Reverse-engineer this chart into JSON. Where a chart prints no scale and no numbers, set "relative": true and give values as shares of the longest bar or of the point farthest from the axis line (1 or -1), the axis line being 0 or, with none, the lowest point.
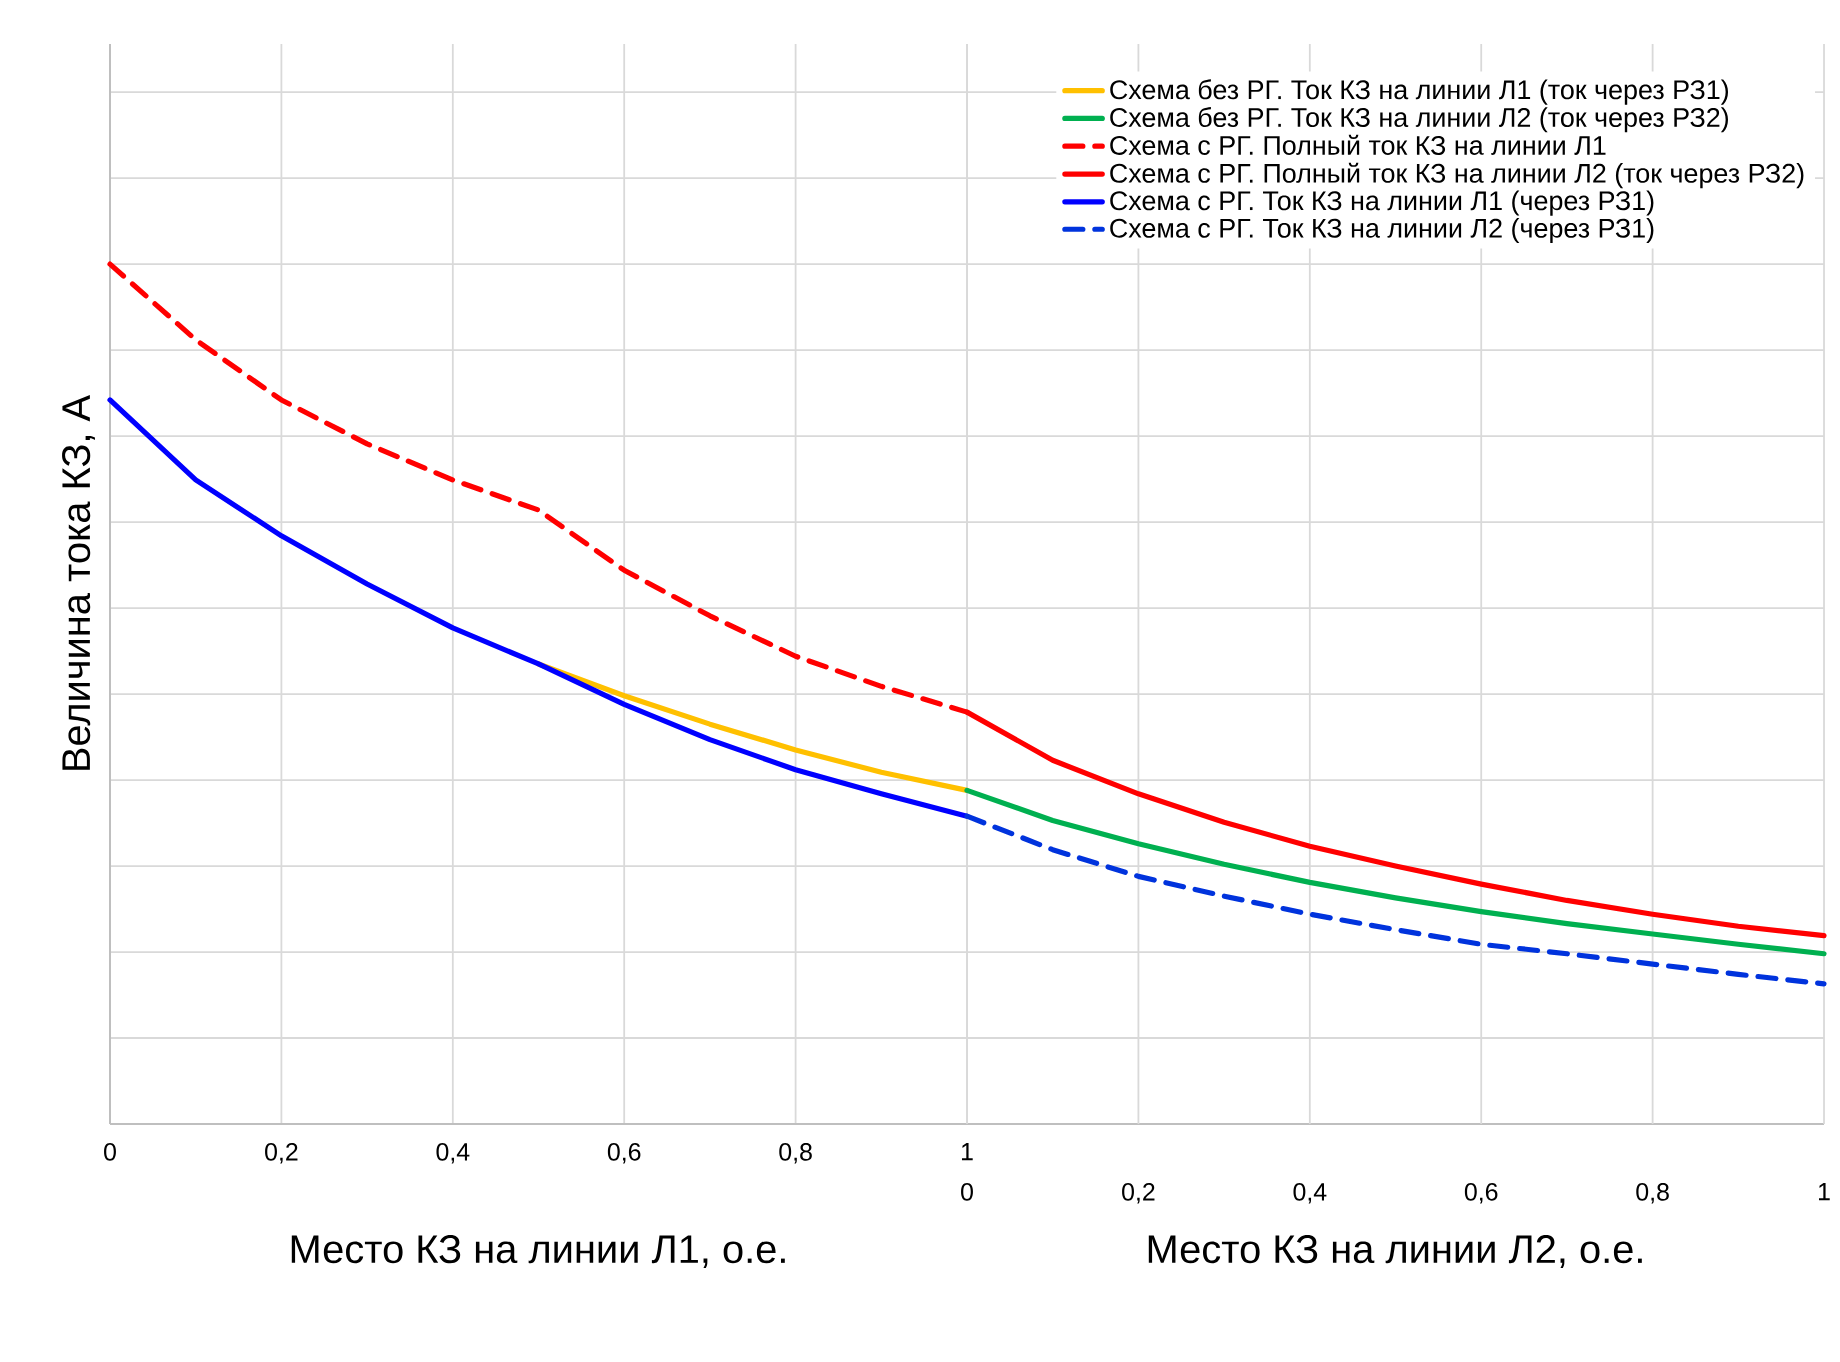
{
  "chart_data": {
    "type": "line",
    "relative": true,
    "grid": true,
    "legend": "top right",
    "xlabel": "Место КЗ на линии Л1, о.е.",
    "x2label": "Место КЗ на линии Л2, о.е.",
    "ylabel": "Величина тока КЗ, А",
    "xlim": [
      0,
      2
    ],
    "xticks": [
      0,
      {
        "value": 0.2,
        "label": "0,2"
      },
      {
        "value": 0.4,
        "label": "0,4"
      },
      {
        "value": 0.6,
        "label": "0,6"
      },
      {
        "value": 0.8,
        "label": "0,8"
      },
      1
    ],
    "x2lim": [
      -1,
      1
    ],
    "x2ticks": [
      0,
      {
        "value": 0.2,
        "label": "0,2"
      },
      {
        "value": 0.4,
        "label": "0,4"
      },
      {
        "value": 0.6,
        "label": "0,6"
      },
      {
        "value": 0.8,
        "label": "0,8"
      },
      1
    ],
    "series": [
      {
        "name": "Схема без РГ. Ток КЗ на линии Л1 (ток через РЗ1)",
        "color": "#ffc000",
        "line_style": "solid",
        "x": [
          0.5,
          0.6,
          0.7,
          0.8,
          0.9,
          1.0
        ],
        "values": [
          0.535,
          0.498,
          0.465,
          0.435,
          0.409,
          0.388
        ]
      },
      {
        "name": "Схема без РГ. Ток КЗ на линии Л2 (ток через РЗ2)",
        "color": "#00b050",
        "line_style": "solid",
        "axis": "x2",
        "x": [
          0,
          0.1,
          0.2,
          0.3,
          0.4,
          0.5,
          0.6,
          0.7,
          0.8,
          0.9,
          1.0
        ],
        "values": [
          0.388,
          0.353,
          0.326,
          0.302,
          0.281,
          0.263,
          0.247,
          0.233,
          0.221,
          0.209,
          0.198
        ]
      },
      {
        "name": "Схема с РГ. Полный ток КЗ на линии Л1",
        "color": "#ff0000",
        "line_style": "dashed",
        "x": [
          0,
          0.1,
          0.2,
          0.3,
          0.4,
          0.5,
          0.6,
          0.7,
          0.8,
          0.9,
          1.0
        ],
        "values": [
          1.0,
          0.912,
          0.842,
          0.791,
          0.749,
          0.714,
          0.644,
          0.591,
          0.544,
          0.509,
          0.479
        ]
      },
      {
        "name": "Схема с РГ. Полный ток КЗ на линии Л2 (ток через РЗ2)",
        "color": "#ff0000",
        "line_style": "solid",
        "axis": "x2",
        "x": [
          0,
          0.1,
          0.2,
          0.3,
          0.4,
          0.5,
          0.6,
          0.7,
          0.8,
          0.9,
          1.0
        ],
        "values": [
          0.479,
          0.423,
          0.384,
          0.351,
          0.323,
          0.3,
          0.279,
          0.26,
          0.244,
          0.23,
          0.219
        ]
      },
      {
        "name": "Схема с РГ. Ток КЗ на линии Л1 (через РЗ1)",
        "color": "#0000ff",
        "line_style": "solid",
        "x": [
          0,
          0.1,
          0.2,
          0.3,
          0.4,
          0.5,
          0.6,
          0.7,
          0.8,
          0.9,
          1.0
        ],
        "values": [
          0.842,
          0.749,
          0.684,
          0.628,
          0.577,
          0.535,
          0.488,
          0.447,
          0.412,
          0.384,
          0.358
        ]
      },
      {
        "name": "Схема с РГ. Ток КЗ на линии Л2 (через РЗ1)",
        "color": "#0033dd",
        "line_style": "dashed",
        "axis": "x2",
        "x": [
          0,
          0.1,
          0.2,
          0.3,
          0.4,
          0.5,
          0.6,
          0.7,
          0.8,
          0.9,
          1.0
        ],
        "values": [
          0.358,
          0.319,
          0.288,
          0.265,
          0.244,
          0.226,
          0.209,
          0.198,
          0.186,
          0.174,
          0.163
        ]
      }
    ]
  }
}
